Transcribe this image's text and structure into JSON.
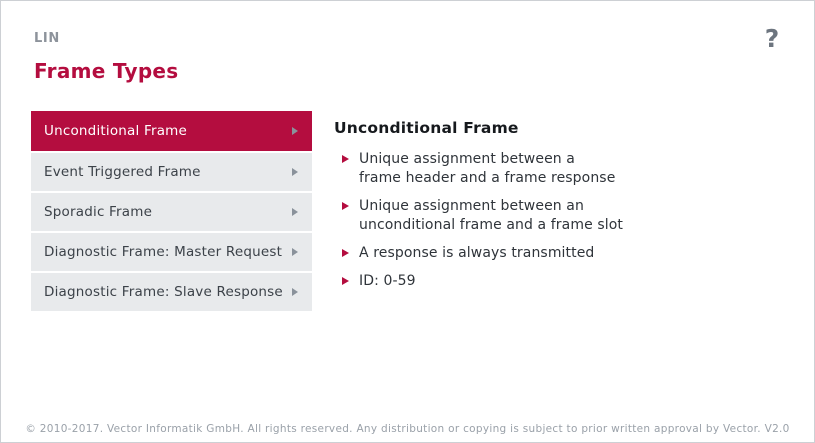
{
  "header": {
    "eyebrow": "LIN",
    "title": "Frame Types",
    "help_label": "?"
  },
  "menu": {
    "items": [
      {
        "label": "Unconditional Frame",
        "selected": true
      },
      {
        "label": "Event Triggered Frame",
        "selected": false
      },
      {
        "label": "Sporadic Frame",
        "selected": false
      },
      {
        "label": "Diagnostic Frame: Master Request",
        "selected": false
      },
      {
        "label": "Diagnostic Frame: Slave Response",
        "selected": false
      }
    ]
  },
  "content": {
    "heading": "Unconditional Frame",
    "bullets": [
      "Unique assignment between a\nframe header and a frame response",
      "Unique assignment between an\nunconditional frame and a frame slot",
      "A response is always transmitted",
      "ID: 0-59"
    ]
  },
  "footer": {
    "copyright": "© 2010-2017. Vector Informatik GmbH. All rights reserved. Any distribution or copying is subject to prior written approval by Vector. V2.0"
  },
  "colors": {
    "accent": "#b40d3f",
    "menu_item_bg": "#e8eaec",
    "menu_text": "#3c4249",
    "arrow_gray": "#8a929b",
    "eyebrow_gray": "#8d939b",
    "footer_text": "#9aa1a9",
    "page_border": "#cdd0d4"
  },
  "icons": {
    "menu_arrow": "chevron-right-icon",
    "bullet_marker": "triangle-right-icon",
    "help": "question-mark-icon"
  }
}
